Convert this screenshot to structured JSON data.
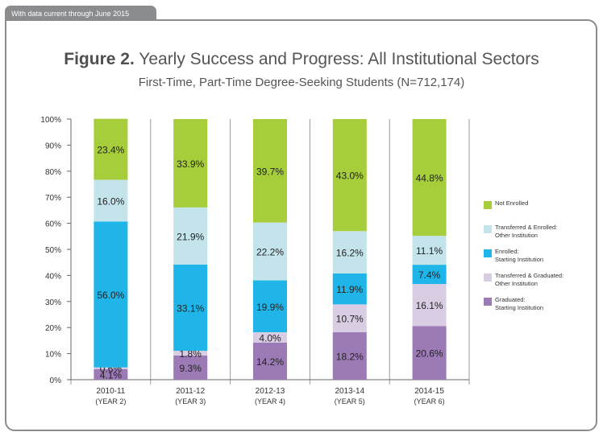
{
  "tab_label": "With data current through June 2015",
  "title_bold": "Figure 2.",
  "title_rest": " Yearly Success and Progress: All Institutional Sectors",
  "subtitle": "First-Time, Part-Time Degree-Seeking Students (N=712,174)",
  "chart_data": {
    "type": "bar",
    "stacked": true,
    "title": "Figure 2. Yearly Success and Progress: All Institutional Sectors",
    "subtitle": "First-Time, Part-Time Degree-Seeking Students (N=712,174)",
    "categories": [
      {
        "year": "2010-11",
        "label": "(YEAR 2)"
      },
      {
        "year": "2011-12",
        "label": "(YEAR 3)"
      },
      {
        "year": "2012-13",
        "label": "(YEAR 4)"
      },
      {
        "year": "2013-14",
        "label": "(YEAR 5)"
      },
      {
        "year": "2014-15",
        "label": "(YEAR 6)"
      }
    ],
    "ylim": [
      0,
      100
    ],
    "yticks": [
      "0%",
      "10%",
      "20%",
      "30%",
      "40%",
      "50%",
      "60%",
      "70%",
      "80%",
      "90%",
      "100%"
    ],
    "series": [
      {
        "name": "Graduated:",
        "name2": "Starting Institution",
        "color": "#9b7ab6",
        "values": [
          4.1,
          9.3,
          14.2,
          18.2,
          20.6
        ],
        "labels": [
          "4.1%",
          "9.3%",
          "14.2%",
          "18.2%",
          "20.6%"
        ]
      },
      {
        "name": "Transferred & Graduated:",
        "name2": "Other Institution",
        "color": "#d8cde3",
        "values": [
          0.6,
          1.8,
          4.0,
          10.7,
          16.1
        ],
        "labels": [
          "0.6%",
          "1.8%",
          "4.0%",
          "10.7%",
          "16.1%"
        ]
      },
      {
        "name": "Enrolled:",
        "name2": "Starting Institution",
        "color": "#1fb5e8",
        "values": [
          56.0,
          33.1,
          19.9,
          11.9,
          7.4
        ],
        "labels": [
          "56.0%",
          "33.1%",
          "19.9%",
          "11.9%",
          "7.4%"
        ]
      },
      {
        "name": "Transferred & Enrolled:",
        "name2": "Other Institution",
        "color": "#c4e4ec",
        "values": [
          16.0,
          21.9,
          22.2,
          16.2,
          11.1
        ],
        "labels": [
          "16.0%",
          "21.9%",
          "22.2%",
          "16.2%",
          "11.1%"
        ]
      },
      {
        "name": "Not Enrolled",
        "name2": "",
        "color": "#a6cd3a",
        "values": [
          23.4,
          33.9,
          39.7,
          43.0,
          44.8
        ],
        "labels": [
          "23.4%",
          "33.9%",
          "39.7%",
          "43.0%",
          "44.8%"
        ]
      }
    ],
    "legend_order": [
      4,
      3,
      2,
      1,
      0
    ],
    "legend_position": "right"
  }
}
